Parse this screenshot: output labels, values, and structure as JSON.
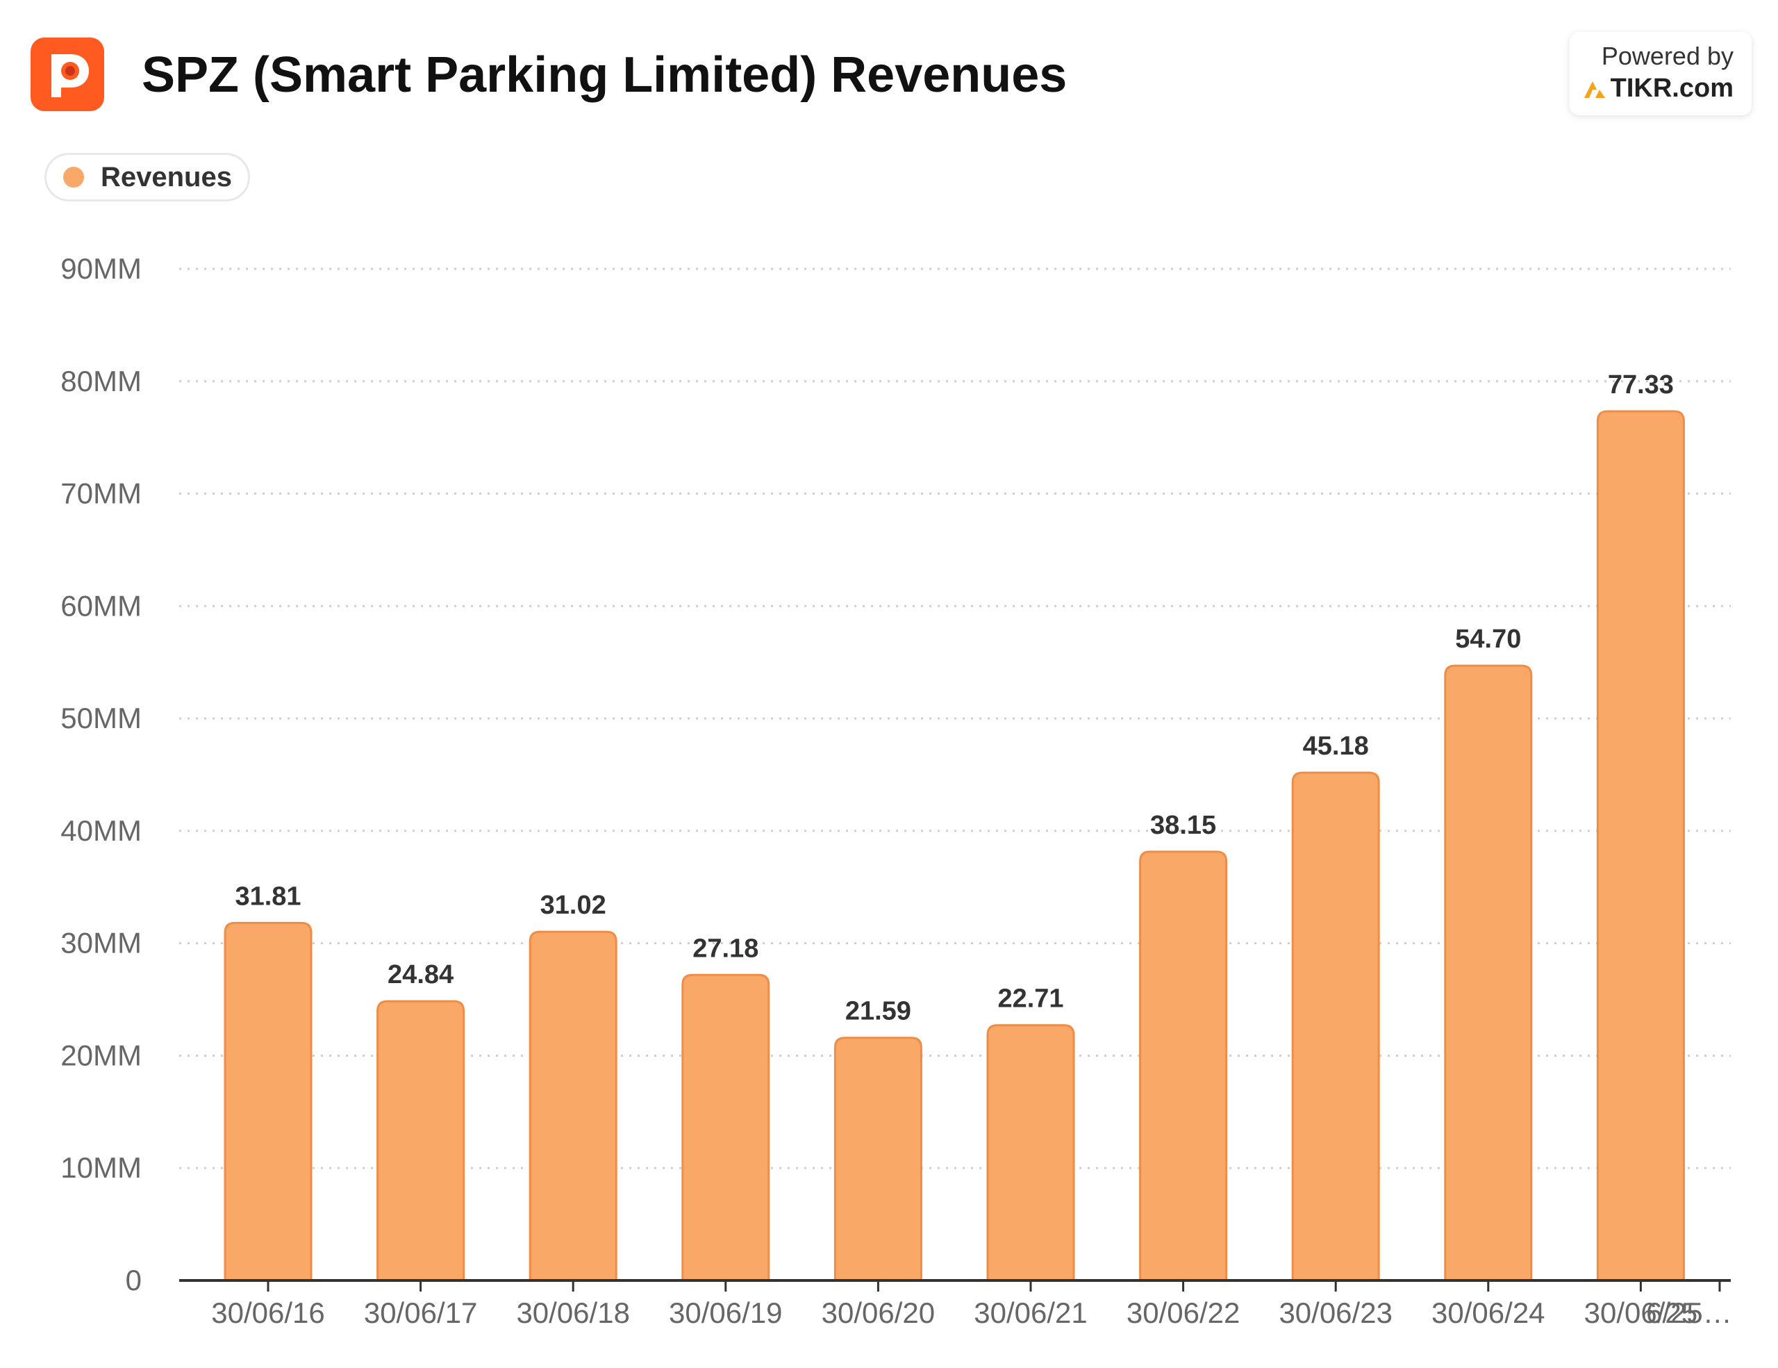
{
  "header": {
    "title": "SPZ (Smart Parking Limited) Revenues",
    "powered_by": "Powered by",
    "brand": "TIKR.com"
  },
  "legend": {
    "label": "Revenues",
    "color": "#f9a868"
  },
  "chart_data": {
    "type": "bar",
    "title": "SPZ (Smart Parking Limited) Revenues",
    "categories": [
      "30/06/16",
      "30/06/17",
      "30/06/18",
      "30/06/19",
      "30/06/20",
      "30/06/21",
      "30/06/22",
      "30/06/23",
      "30/06/24",
      "30/06/25"
    ],
    "series": [
      {
        "name": "Revenues",
        "values": [
          31.81,
          24.84,
          31.02,
          27.18,
          21.59,
          22.71,
          38.15,
          45.18,
          54.7,
          77.33
        ]
      }
    ],
    "data_labels": [
      "31.81",
      "24.84",
      "31.02",
      "27.18",
      "21.59",
      "22.71",
      "38.15",
      "45.18",
      "54.70",
      "77.33"
    ],
    "overlapping_tick_label": "6/25…",
    "y_ticks": [
      0,
      10,
      20,
      30,
      40,
      50,
      60,
      70,
      80,
      90
    ],
    "y_tick_labels": [
      "0",
      "10MM",
      "20MM",
      "30MM",
      "40MM",
      "50MM",
      "60MM",
      "70MM",
      "80MM",
      "90MM"
    ],
    "ylim": [
      0,
      90
    ],
    "grid": true,
    "legend_position": "top-left",
    "bar_color": "#f9a868",
    "bar_border_color": "#ef8d47"
  }
}
